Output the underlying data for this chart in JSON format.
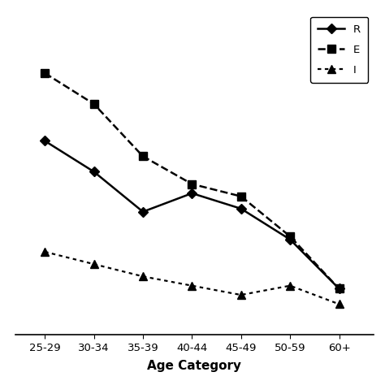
{
  "categories": [
    "25-29",
    "30-34",
    "35-39",
    "40-44",
    "45-49",
    "50-59",
    "60+"
  ],
  "r_vals": [
    58,
    48,
    35,
    41,
    36,
    26,
    10
  ],
  "e_vals": [
    80,
    70,
    53,
    44,
    40,
    27,
    10
  ],
  "i_vals": [
    22,
    18,
    14,
    11,
    8,
    11,
    5
  ],
  "xlabel": "Age Category",
  "legend_labels": [
    "R",
    "E",
    "I"
  ],
  "figsize": [
    4.74,
    4.74
  ],
  "dpi": 100
}
